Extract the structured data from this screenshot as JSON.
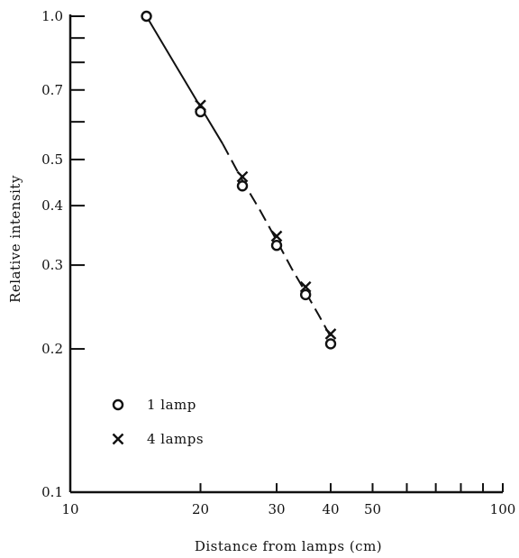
{
  "chart_data": {
    "type": "scatter",
    "xlabel": "Distance from lamps (cm)",
    "ylabel": "Relative intensity",
    "x_scale": "log",
    "y_scale": "log",
    "xlim": [
      10,
      100
    ],
    "ylim": [
      0.1,
      1.0
    ],
    "grid": false,
    "legend_position": "lower-left",
    "x_ticks": [
      10,
      20,
      30,
      40,
      50,
      100
    ],
    "x_tick_labels": [
      "10",
      "20",
      "30",
      "40",
      "50",
      "100"
    ],
    "x_minor_ticks": [
      60,
      70,
      80,
      90
    ],
    "y_ticks": [
      0.1,
      0.2,
      0.3,
      0.4,
      0.5,
      0.7,
      1.0
    ],
    "y_tick_labels": [
      "0.1",
      "0.2",
      "0.3",
      "0.4",
      "0.5",
      "0.7",
      "1.0"
    ],
    "y_minor_ticks": [
      0.6,
      0.8,
      0.9
    ],
    "series": [
      {
        "name": "1 lamp",
        "marker": "circle",
        "x": [
          15,
          20,
          25,
          30,
          35,
          40
        ],
        "y": [
          1.0,
          0.63,
          0.44,
          0.33,
          0.26,
          0.205
        ]
      },
      {
        "name": "4 lamps",
        "marker": "x",
        "x": [
          20,
          25,
          30,
          35,
          40
        ],
        "y": [
          0.65,
          0.46,
          0.345,
          0.27,
          0.215
        ]
      }
    ],
    "fit_curve": {
      "style": "solid-then-dashed",
      "x": [
        15,
        17.5,
        20,
        22.5,
        25,
        27.5,
        30,
        32.5,
        35,
        37.5,
        40
      ],
      "y": [
        1.0,
        0.79,
        0.645,
        0.54,
        0.452,
        0.39,
        0.338,
        0.295,
        0.263,
        0.236,
        0.212
      ]
    }
  }
}
